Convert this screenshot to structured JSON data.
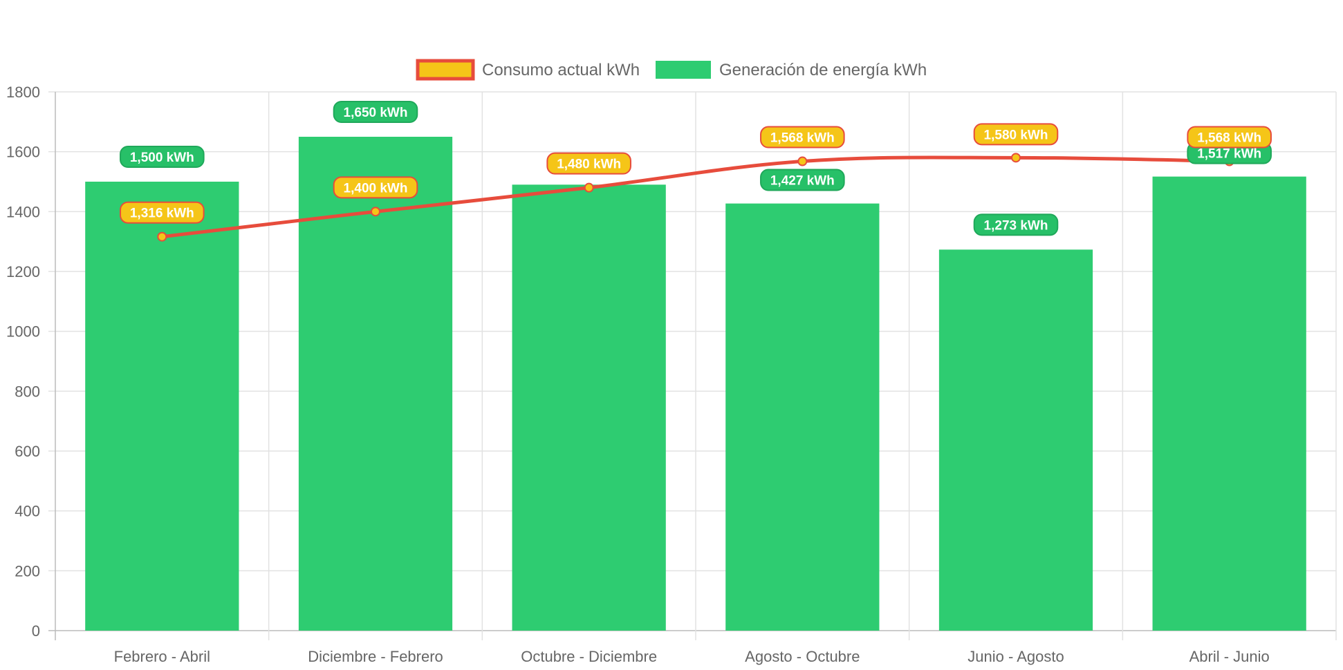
{
  "chart_data": {
    "type": "bar",
    "title": "",
    "xlabel": "",
    "ylabel": "",
    "ylim": [
      0,
      1800
    ],
    "yticks": [
      0,
      200,
      400,
      600,
      800,
      1000,
      1200,
      1400,
      1600,
      1800
    ],
    "grid": true,
    "legend_position": "top-center",
    "categories": [
      "Febrero - Abril",
      "Diciembre - Febrero",
      "Octubre - Diciembre",
      "Agosto - Octubre",
      "Junio - Agosto",
      "Abril - Junio"
    ],
    "series": [
      {
        "name": "Consumo actual kWh",
        "type": "line",
        "values": [
          1316,
          1400,
          1480,
          1568,
          1580,
          1568
        ],
        "labels": [
          "1,316 kWh",
          "1,400 kWh",
          "1,480 kWh",
          "1,568 kWh",
          "1,580 kWh",
          "1,568 kWh"
        ],
        "line_color": "#e74c3c",
        "fill_color": "#f5c518"
      },
      {
        "name": "Generación de energía kWh",
        "type": "bar",
        "values": [
          1500,
          1650,
          1490,
          1427,
          1273,
          1517
        ],
        "labels": [
          "1,500 kWh",
          "1,650 kWh",
          "",
          "1,427 kWh",
          "1,273 kWh",
          "1,517 kWh"
        ],
        "color": "#2ecc71",
        "label_color": "#27c068"
      }
    ]
  }
}
